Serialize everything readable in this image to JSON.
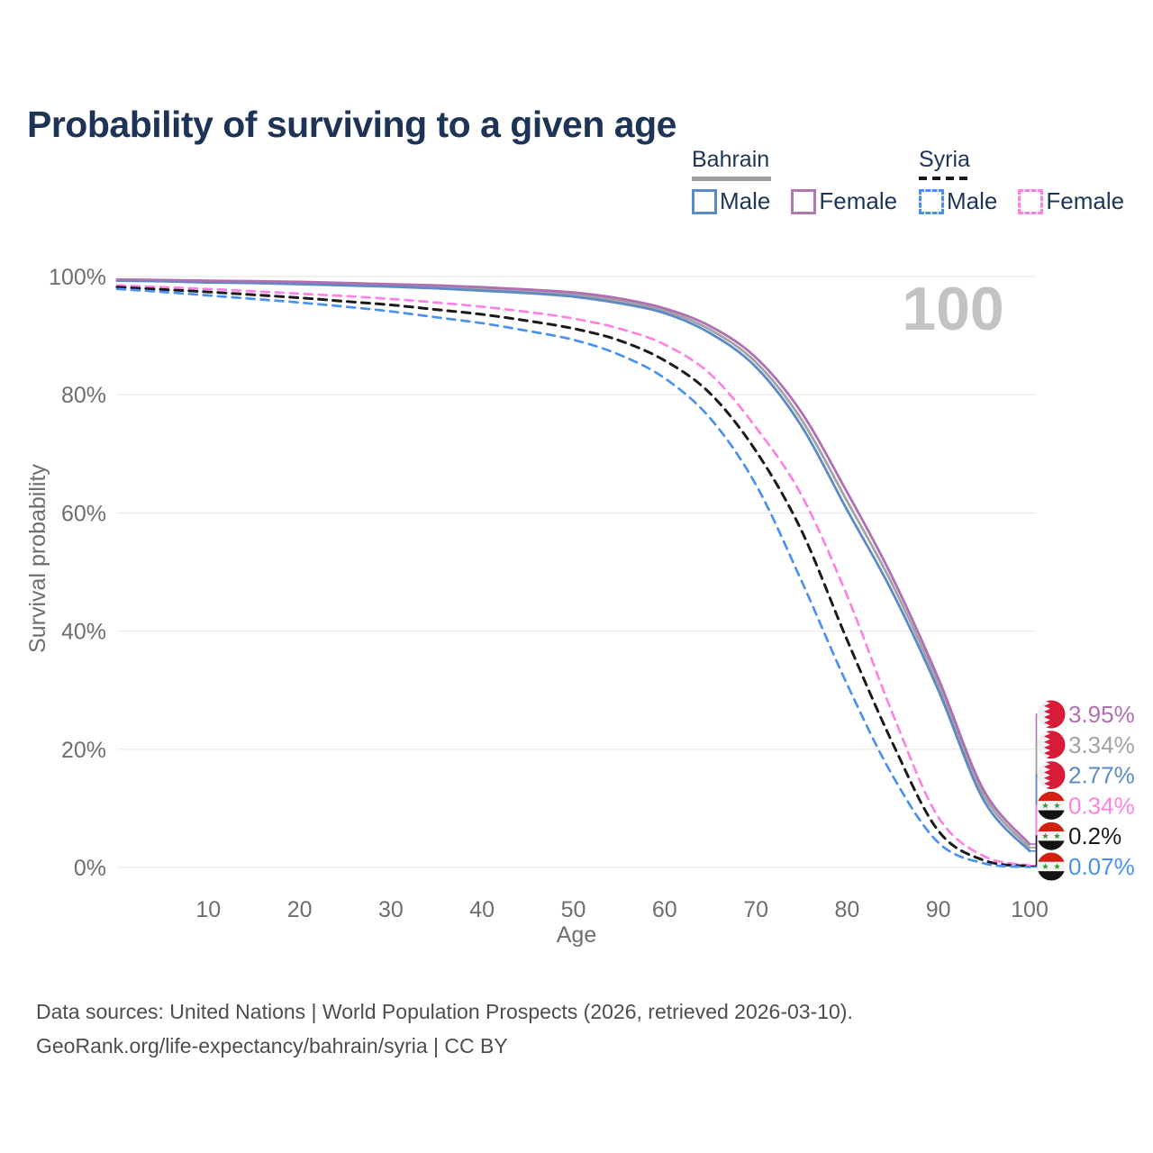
{
  "title": "Probability of surviving to a given age",
  "watermark": "100",
  "legend": {
    "groups": [
      {
        "country": "Bahrain",
        "line_style": "solid",
        "items": [
          {
            "label": "Male",
            "color": "#5b8ac6"
          },
          {
            "label": "Female",
            "color": "#b07ab0"
          }
        ]
      },
      {
        "country": "Syria",
        "line_style": "dashed",
        "items": [
          {
            "label": "Male",
            "color": "#4a90f2"
          },
          {
            "label": "Female",
            "color": "#ff82e2"
          }
        ]
      }
    ]
  },
  "chart_data": {
    "type": "line",
    "title": "Probability of surviving to a given age",
    "xlabel": "Age",
    "ylabel": "Survival probability",
    "xlim": [
      0,
      100
    ],
    "ylim": [
      0,
      100
    ],
    "grid": "horizontal",
    "x_ticks": [
      10,
      20,
      30,
      40,
      50,
      60,
      70,
      80,
      90,
      100
    ],
    "y_ticks": [
      {
        "value": 0,
        "label": "0%"
      },
      {
        "value": 20,
        "label": "20%"
      },
      {
        "value": 40,
        "label": "40%"
      },
      {
        "value": 60,
        "label": "60%"
      },
      {
        "value": 80,
        "label": "80%"
      },
      {
        "value": 100,
        "label": "100%"
      }
    ],
    "x": [
      0,
      5,
      10,
      15,
      20,
      25,
      30,
      35,
      40,
      45,
      50,
      55,
      60,
      65,
      70,
      75,
      80,
      85,
      90,
      95,
      100
    ],
    "series": [
      {
        "name": "Bahrain Female",
        "country": "Bahrain",
        "sex": "Female",
        "dash": "solid",
        "color": "#b06fb2",
        "flag": "bahrain",
        "end_label": "3.95%",
        "values": [
          99.5,
          99.4,
          99.3,
          99.2,
          99.1,
          98.9,
          98.7,
          98.5,
          98.2,
          97.8,
          97.3,
          96.3,
          94.6,
          91.6,
          86.3,
          77.0,
          63.5,
          49.0,
          32.0,
          13.0,
          3.95
        ]
      },
      {
        "name": "Bahrain Total",
        "country": "Bahrain",
        "sex": "Both",
        "dash": "solid",
        "color": "#a3a3a3",
        "flag": "bahrain",
        "end_label": "3.34%",
        "values": [
          99.4,
          99.3,
          99.2,
          99.0,
          98.9,
          98.7,
          98.5,
          98.2,
          97.9,
          97.5,
          97.0,
          95.9,
          94.2,
          91.0,
          85.5,
          75.8,
          62.0,
          47.8,
          31.0,
          12.2,
          3.34
        ]
      },
      {
        "name": "Bahrain Male",
        "country": "Bahrain",
        "sex": "Male",
        "dash": "solid",
        "color": "#5b8ac6",
        "flag": "bahrain",
        "end_label": "2.77%",
        "values": [
          99.3,
          99.2,
          99.0,
          98.9,
          98.7,
          98.5,
          98.3,
          98.0,
          97.6,
          97.2,
          96.6,
          95.5,
          93.8,
          90.4,
          84.7,
          74.7,
          60.5,
          46.5,
          30.0,
          11.3,
          2.77
        ]
      },
      {
        "name": "Syria Female",
        "country": "Syria",
        "sex": "Female",
        "dash": "dashed",
        "color": "#ff82e2",
        "flag": "syria",
        "end_label": "0.34%",
        "values": [
          98.5,
          98.2,
          97.9,
          97.5,
          97.1,
          96.7,
          96.2,
          95.6,
          94.9,
          94.0,
          92.9,
          91.2,
          88.5,
          83.5,
          74.5,
          63.0,
          46.0,
          26.0,
          8.5,
          1.9,
          0.34
        ]
      },
      {
        "name": "Syria Total",
        "country": "Syria",
        "sex": "Both",
        "dash": "dashed",
        "color": "#1a1a1a",
        "flag": "syria",
        "end_label": "0.2%",
        "values": [
          98.2,
          97.8,
          97.4,
          96.9,
          96.4,
          95.8,
          95.2,
          94.4,
          93.6,
          92.5,
          91.2,
          89.2,
          85.8,
          80.2,
          70.5,
          57.0,
          38.5,
          21.0,
          6.2,
          1.2,
          0.2
        ]
      },
      {
        "name": "Syria Male",
        "country": "Syria",
        "sex": "Male",
        "dash": "dashed",
        "color": "#4a90f2",
        "flag": "syria",
        "end_label": "0.07%",
        "values": [
          97.9,
          97.4,
          96.8,
          96.2,
          95.6,
          94.9,
          94.1,
          93.1,
          92.1,
          90.8,
          89.3,
          86.8,
          82.8,
          76.0,
          64.8,
          48.5,
          31.0,
          15.5,
          4.2,
          0.7,
          0.07
        ]
      }
    ],
    "legend_position": "top-right",
    "annotation": "100"
  },
  "footer": {
    "line1": "Data sources: United Nations | World Population Prospects (2026, retrieved 2026-03-10).",
    "line2": "GeoRank.org/life-expectancy/bahrain/syria | CC BY"
  },
  "colors": {
    "title": "#1d3456",
    "bahrain_underline": "#9e9e9e",
    "syria_underline": "#1a1a1a",
    "gridline": "#e6e6e6",
    "axis_text": "#6e6e6e",
    "watermark": "#c3c3c3",
    "footer_text": "#4d4d4d",
    "bahrain_red": "#d81b38",
    "syria_red": "#d32011",
    "syria_green": "#3d9b35"
  }
}
